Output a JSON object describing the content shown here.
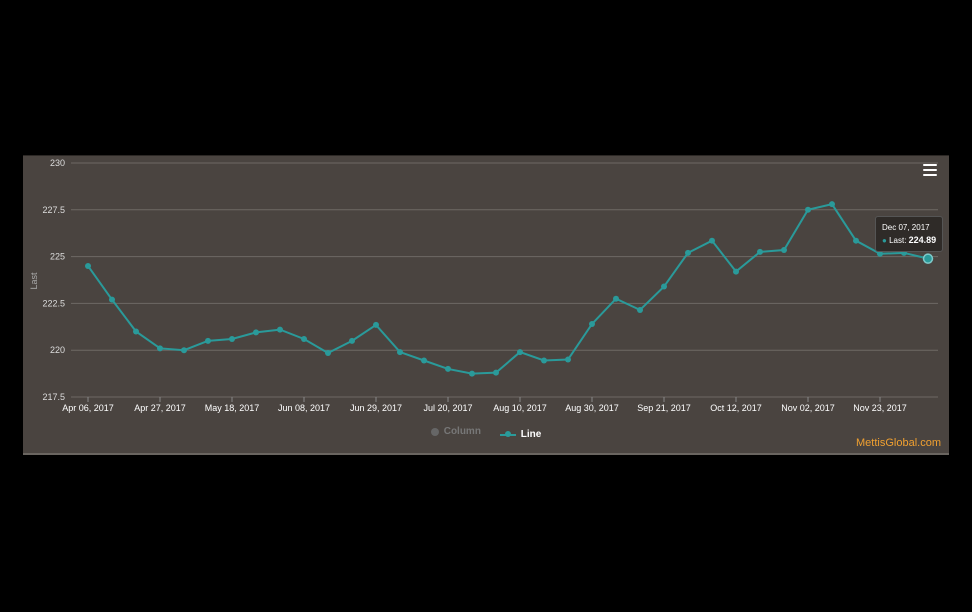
{
  "chart_data": {
    "type": "line",
    "ylabel": "Last",
    "ylim": [
      217.5,
      230
    ],
    "yticks": [
      "217.5",
      "220",
      "222.5",
      "225",
      "227.5",
      "230"
    ],
    "ytick_values": [
      217.5,
      220,
      222.5,
      225,
      227.5,
      230
    ],
    "xtick_labels": [
      "Apr 06, 2017",
      "Apr 27, 2017",
      "May 18, 2017",
      "Jun 08, 2017",
      "Jun 29, 2017",
      "Jul 20, 2017",
      "Aug 10, 2017",
      "Aug 30, 2017",
      "Sep 21, 2017",
      "Oct 12, 2017",
      "Nov 02, 2017",
      "Nov 23, 2017"
    ],
    "grid": true,
    "series": [
      {
        "name": "Column",
        "visible": false,
        "values": []
      },
      {
        "name": "Line",
        "visible": true,
        "color": "#2a9a9a",
        "values": [
          224.5,
          222.7,
          221.0,
          220.1,
          220.0,
          220.5,
          220.6,
          220.95,
          221.1,
          220.6,
          219.85,
          220.5,
          221.35,
          219.9,
          219.45,
          219.0,
          218.75,
          218.8,
          219.9,
          219.45,
          219.5,
          221.4,
          222.75,
          222.15,
          223.4,
          225.2,
          225.85,
          224.2,
          225.25,
          225.35,
          227.5,
          227.8,
          225.85,
          225.15,
          225.2,
          224.89
        ]
      }
    ],
    "tooltip": {
      "date": "Dec 07, 2017",
      "label": "Last:",
      "value": "224.89"
    }
  },
  "credit": "MettisGlobal.com",
  "legend": {
    "column_label": "Column",
    "line_label": "Line"
  },
  "colors": {
    "background": "#4a4440",
    "line": "#2a9a9a",
    "grid": "#6e6964",
    "credit": "#f0a030"
  }
}
